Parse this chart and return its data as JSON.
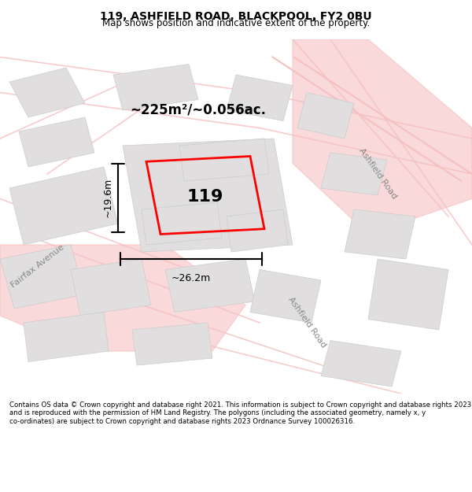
{
  "title_line1": "119, ASHFIELD ROAD, BLACKPOOL, FY2 0BU",
  "title_line2": "Map shows position and indicative extent of the property.",
  "area_text": "~225m²/~0.056ac.",
  "property_number": "119",
  "dim_width": "~26.2m",
  "dim_height": "~19.6m",
  "street_label1": "Fairfax Avenue",
  "street_label2_1": "Ashfield Road",
  "street_label2_2": "Ashfield Road",
  "footer": "Contains OS data © Crown copyright and database right 2021. This information is subject to Crown copyright and database rights 2023 and is reproduced with the permission of HM Land Registry. The polygons (including the associated geometry, namely x, y co-ordinates) are subject to Crown copyright and database rights 2023 Ordnance Survey 100026316.",
  "bg_color": "#f5f5f5",
  "map_bg": "#f0eeee",
  "road_color": "#f5c0c0",
  "building_color": "#e0dede",
  "building_edge": "#cccccc",
  "property_color": "#ff0000",
  "dim_color": "#000000",
  "title_bg": "#ffffff",
  "footer_bg": "#ffffff"
}
